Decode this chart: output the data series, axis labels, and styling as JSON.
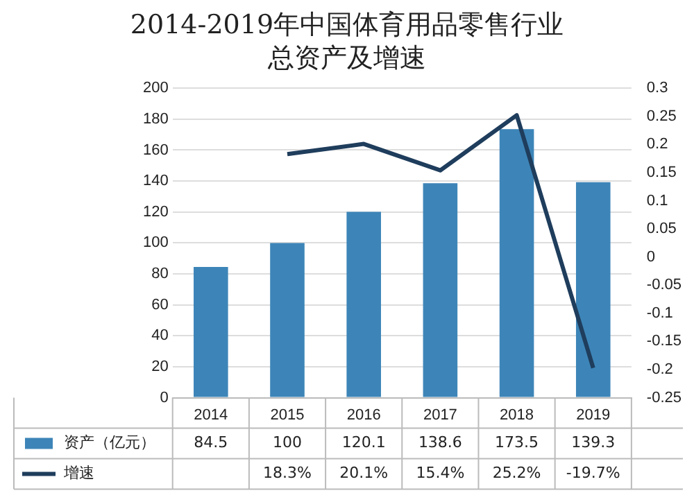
{
  "chart_data": {
    "type": "bar",
    "title": "2014-2019年中国体育用品零售行业总资产及增速",
    "categories": [
      "2014",
      "2015",
      "2016",
      "2017",
      "2018",
      "2019"
    ],
    "series": [
      {
        "name": "资产（亿元）",
        "color": "#3d85b8",
        "values": [
          84.5,
          100,
          120.1,
          138.6,
          173.5,
          139.3
        ],
        "value_labels": [
          "84.5",
          "100",
          "120.1",
          "138.6",
          "173.5",
          "139.3"
        ]
      },
      {
        "name": "增速",
        "type": "line",
        "axis": "y2",
        "color": "#1f3d5c",
        "values": [
          null,
          0.183,
          0.201,
          0.154,
          0.252,
          -0.197
        ],
        "value_labels": [
          null,
          "18.3%",
          "20.1%",
          "15.4%",
          "25.2%",
          "-19.7%"
        ]
      }
    ],
    "ylim": [
      0,
      200
    ],
    "yticks": [
      0,
      20,
      40,
      60,
      80,
      100,
      120,
      140,
      160,
      180,
      200
    ],
    "y2lim": [
      -0.25,
      0.3
    ],
    "y2ticks": [
      -0.25,
      -0.2,
      -0.15,
      -0.1,
      -0.05,
      0,
      0.05,
      0.1,
      0.15,
      0.2,
      0.25,
      0.3
    ],
    "grid": "y",
    "legend": "bottom",
    "marker": "none"
  }
}
